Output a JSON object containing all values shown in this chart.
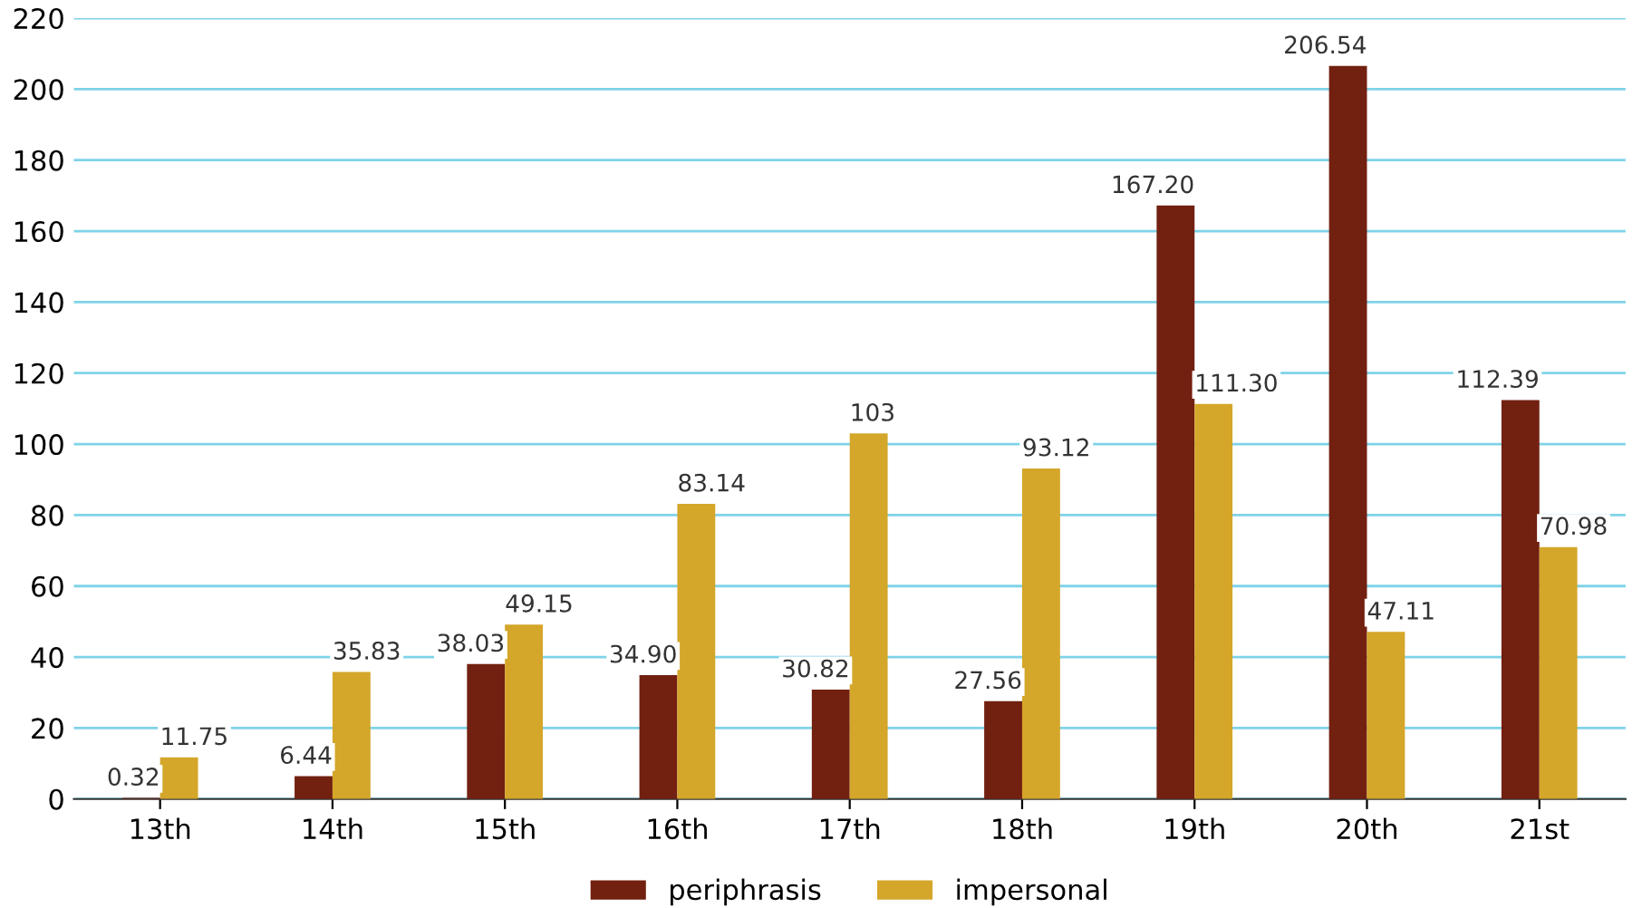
{
  "chart_data": {
    "type": "bar",
    "categories": [
      "13th",
      "14th",
      "15th",
      "16th",
      "17th",
      "18th",
      "19th",
      "20th",
      "21st"
    ],
    "series": [
      {
        "name": "periphrasis",
        "color": "#722010",
        "values": [
          0.32,
          6.44,
          38.03,
          34.9,
          30.82,
          27.56,
          167.2,
          206.54,
          112.39
        ],
        "value_labels": [
          "0.32",
          "6.44",
          "38.03",
          "34.90",
          "30.82",
          "27.56",
          "167.20",
          "206.54",
          "112.39"
        ]
      },
      {
        "name": "impersonal",
        "color": "#d4a62a",
        "values": [
          11.75,
          35.83,
          49.15,
          83.14,
          103,
          93.12,
          111.3,
          47.11,
          70.98
        ],
        "value_labels": [
          "11.75",
          "35.83",
          "49.15",
          "83.14",
          "103",
          "93.12",
          "111.30",
          "47.11",
          "70.98"
        ]
      }
    ],
    "ylim": [
      0,
      220
    ],
    "yticks": [
      0,
      20,
      40,
      60,
      80,
      100,
      120,
      140,
      160,
      180,
      200,
      220
    ],
    "grid": "y",
    "legend": "bottom"
  }
}
